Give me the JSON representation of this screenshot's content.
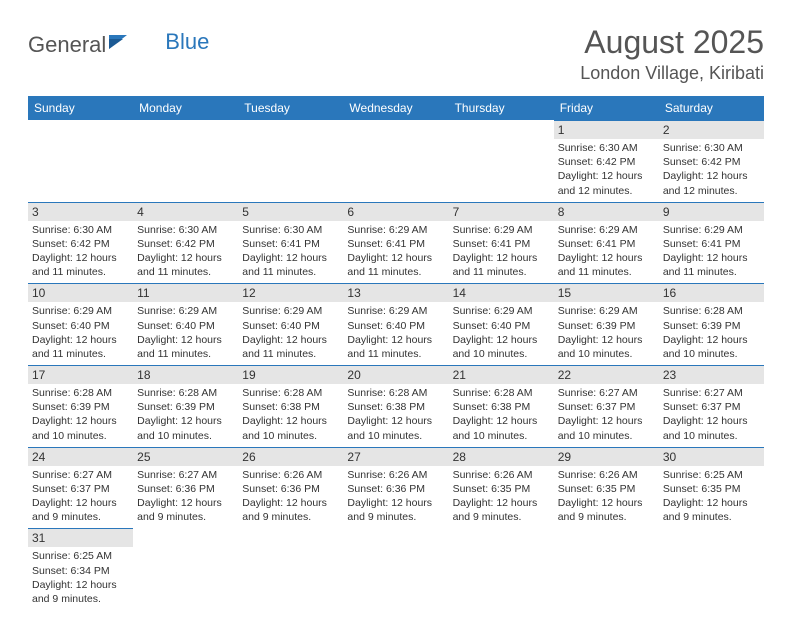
{
  "logo": {
    "text1": "General",
    "text2": "Blue",
    "flag_color": "#2a77bb"
  },
  "title": "August 2025",
  "location": "London Village, Kiribati",
  "header_bg": "#2a77bb",
  "daynum_bg": "#e5e5e5",
  "daynum_border": "#2a77bb",
  "days": [
    "Sunday",
    "Monday",
    "Tuesday",
    "Wednesday",
    "Thursday",
    "Friday",
    "Saturday"
  ],
  "weeks": [
    [
      null,
      null,
      null,
      null,
      null,
      {
        "n": "1",
        "sr": "Sunrise: 6:30 AM",
        "ss": "Sunset: 6:42 PM",
        "d1": "Daylight: 12 hours",
        "d2": "and 12 minutes."
      },
      {
        "n": "2",
        "sr": "Sunrise: 6:30 AM",
        "ss": "Sunset: 6:42 PM",
        "d1": "Daylight: 12 hours",
        "d2": "and 12 minutes."
      }
    ],
    [
      {
        "n": "3",
        "sr": "Sunrise: 6:30 AM",
        "ss": "Sunset: 6:42 PM",
        "d1": "Daylight: 12 hours",
        "d2": "and 11 minutes."
      },
      {
        "n": "4",
        "sr": "Sunrise: 6:30 AM",
        "ss": "Sunset: 6:42 PM",
        "d1": "Daylight: 12 hours",
        "d2": "and 11 minutes."
      },
      {
        "n": "5",
        "sr": "Sunrise: 6:30 AM",
        "ss": "Sunset: 6:41 PM",
        "d1": "Daylight: 12 hours",
        "d2": "and 11 minutes."
      },
      {
        "n": "6",
        "sr": "Sunrise: 6:29 AM",
        "ss": "Sunset: 6:41 PM",
        "d1": "Daylight: 12 hours",
        "d2": "and 11 minutes."
      },
      {
        "n": "7",
        "sr": "Sunrise: 6:29 AM",
        "ss": "Sunset: 6:41 PM",
        "d1": "Daylight: 12 hours",
        "d2": "and 11 minutes."
      },
      {
        "n": "8",
        "sr": "Sunrise: 6:29 AM",
        "ss": "Sunset: 6:41 PM",
        "d1": "Daylight: 12 hours",
        "d2": "and 11 minutes."
      },
      {
        "n": "9",
        "sr": "Sunrise: 6:29 AM",
        "ss": "Sunset: 6:41 PM",
        "d1": "Daylight: 12 hours",
        "d2": "and 11 minutes."
      }
    ],
    [
      {
        "n": "10",
        "sr": "Sunrise: 6:29 AM",
        "ss": "Sunset: 6:40 PM",
        "d1": "Daylight: 12 hours",
        "d2": "and 11 minutes."
      },
      {
        "n": "11",
        "sr": "Sunrise: 6:29 AM",
        "ss": "Sunset: 6:40 PM",
        "d1": "Daylight: 12 hours",
        "d2": "and 11 minutes."
      },
      {
        "n": "12",
        "sr": "Sunrise: 6:29 AM",
        "ss": "Sunset: 6:40 PM",
        "d1": "Daylight: 12 hours",
        "d2": "and 11 minutes."
      },
      {
        "n": "13",
        "sr": "Sunrise: 6:29 AM",
        "ss": "Sunset: 6:40 PM",
        "d1": "Daylight: 12 hours",
        "d2": "and 11 minutes."
      },
      {
        "n": "14",
        "sr": "Sunrise: 6:29 AM",
        "ss": "Sunset: 6:40 PM",
        "d1": "Daylight: 12 hours",
        "d2": "and 10 minutes."
      },
      {
        "n": "15",
        "sr": "Sunrise: 6:29 AM",
        "ss": "Sunset: 6:39 PM",
        "d1": "Daylight: 12 hours",
        "d2": "and 10 minutes."
      },
      {
        "n": "16",
        "sr": "Sunrise: 6:28 AM",
        "ss": "Sunset: 6:39 PM",
        "d1": "Daylight: 12 hours",
        "d2": "and 10 minutes."
      }
    ],
    [
      {
        "n": "17",
        "sr": "Sunrise: 6:28 AM",
        "ss": "Sunset: 6:39 PM",
        "d1": "Daylight: 12 hours",
        "d2": "and 10 minutes."
      },
      {
        "n": "18",
        "sr": "Sunrise: 6:28 AM",
        "ss": "Sunset: 6:39 PM",
        "d1": "Daylight: 12 hours",
        "d2": "and 10 minutes."
      },
      {
        "n": "19",
        "sr": "Sunrise: 6:28 AM",
        "ss": "Sunset: 6:38 PM",
        "d1": "Daylight: 12 hours",
        "d2": "and 10 minutes."
      },
      {
        "n": "20",
        "sr": "Sunrise: 6:28 AM",
        "ss": "Sunset: 6:38 PM",
        "d1": "Daylight: 12 hours",
        "d2": "and 10 minutes."
      },
      {
        "n": "21",
        "sr": "Sunrise: 6:28 AM",
        "ss": "Sunset: 6:38 PM",
        "d1": "Daylight: 12 hours",
        "d2": "and 10 minutes."
      },
      {
        "n": "22",
        "sr": "Sunrise: 6:27 AM",
        "ss": "Sunset: 6:37 PM",
        "d1": "Daylight: 12 hours",
        "d2": "and 10 minutes."
      },
      {
        "n": "23",
        "sr": "Sunrise: 6:27 AM",
        "ss": "Sunset: 6:37 PM",
        "d1": "Daylight: 12 hours",
        "d2": "and 10 minutes."
      }
    ],
    [
      {
        "n": "24",
        "sr": "Sunrise: 6:27 AM",
        "ss": "Sunset: 6:37 PM",
        "d1": "Daylight: 12 hours",
        "d2": "and 9 minutes."
      },
      {
        "n": "25",
        "sr": "Sunrise: 6:27 AM",
        "ss": "Sunset: 6:36 PM",
        "d1": "Daylight: 12 hours",
        "d2": "and 9 minutes."
      },
      {
        "n": "26",
        "sr": "Sunrise: 6:26 AM",
        "ss": "Sunset: 6:36 PM",
        "d1": "Daylight: 12 hours",
        "d2": "and 9 minutes."
      },
      {
        "n": "27",
        "sr": "Sunrise: 6:26 AM",
        "ss": "Sunset: 6:36 PM",
        "d1": "Daylight: 12 hours",
        "d2": "and 9 minutes."
      },
      {
        "n": "28",
        "sr": "Sunrise: 6:26 AM",
        "ss": "Sunset: 6:35 PM",
        "d1": "Daylight: 12 hours",
        "d2": "and 9 minutes."
      },
      {
        "n": "29",
        "sr": "Sunrise: 6:26 AM",
        "ss": "Sunset: 6:35 PM",
        "d1": "Daylight: 12 hours",
        "d2": "and 9 minutes."
      },
      {
        "n": "30",
        "sr": "Sunrise: 6:25 AM",
        "ss": "Sunset: 6:35 PM",
        "d1": "Daylight: 12 hours",
        "d2": "and 9 minutes."
      }
    ],
    [
      {
        "n": "31",
        "sr": "Sunrise: 6:25 AM",
        "ss": "Sunset: 6:34 PM",
        "d1": "Daylight: 12 hours",
        "d2": "and 9 minutes."
      },
      null,
      null,
      null,
      null,
      null,
      null
    ]
  ]
}
